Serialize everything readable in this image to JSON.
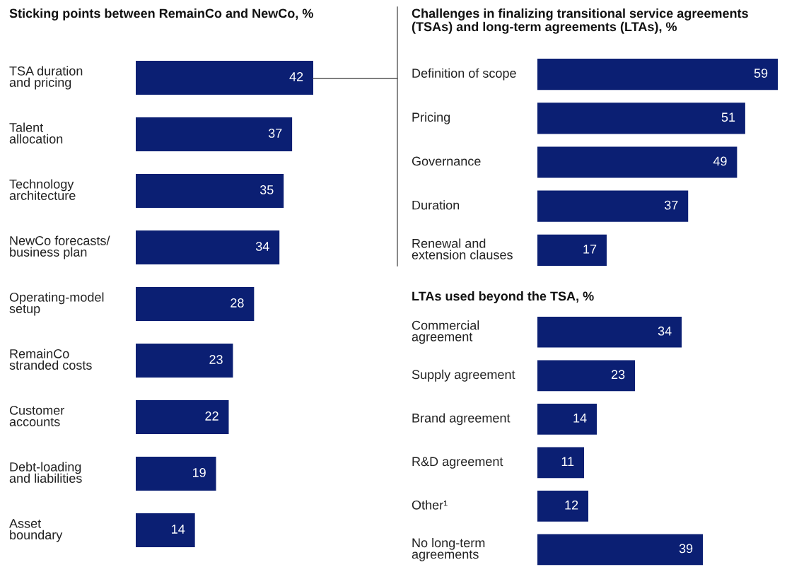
{
  "chart_data": [
    {
      "type": "bar",
      "orientation": "horizontal",
      "title": "Sticking points between RemainCo and NewCo, %",
      "categories": [
        "TSA duration\nand pricing",
        "Talent\nallocation",
        "Technology\narchitecture",
        "NewCo forecasts/\nbusiness plan",
        "Operating-model\nsetup",
        "RemainCo\nstranded costs",
        "Customer\naccounts",
        "Debt-loading\nand liabilities",
        "Asset\nboundary"
      ],
      "values": [
        42,
        37,
        35,
        34,
        28,
        23,
        22,
        19,
        14
      ],
      "color": "#0b1f73",
      "data_labels": true,
      "grid": false,
      "legend": false,
      "tick_labels": false
    },
    {
      "type": "bar",
      "orientation": "horizontal",
      "title": "Challenges in finalizing transitional service agreements\n(TSAs) and long-term agreements (LTAs), %",
      "categories": [
        "Definition of scope",
        "Pricing",
        "Governance",
        "Duration",
        "Renewal and\nextension clauses"
      ],
      "values": [
        59,
        51,
        49,
        37,
        17
      ],
      "color": "#0b1f73",
      "data_labels": true,
      "grid": false,
      "legend": false,
      "tick_labels": false
    },
    {
      "type": "bar",
      "orientation": "horizontal",
      "title": "LTAs used beyond the TSA, %",
      "categories": [
        "Commercial\nagreement",
        "Supply agreement",
        "Brand agreement",
        "R&D agreement",
        "Other¹",
        "No long-term\nagreements"
      ],
      "values": [
        34,
        23,
        14,
        11,
        12,
        39
      ],
      "color": "#0b1f73",
      "data_labels": true,
      "grid": false,
      "legend": false,
      "tick_labels": false
    }
  ]
}
